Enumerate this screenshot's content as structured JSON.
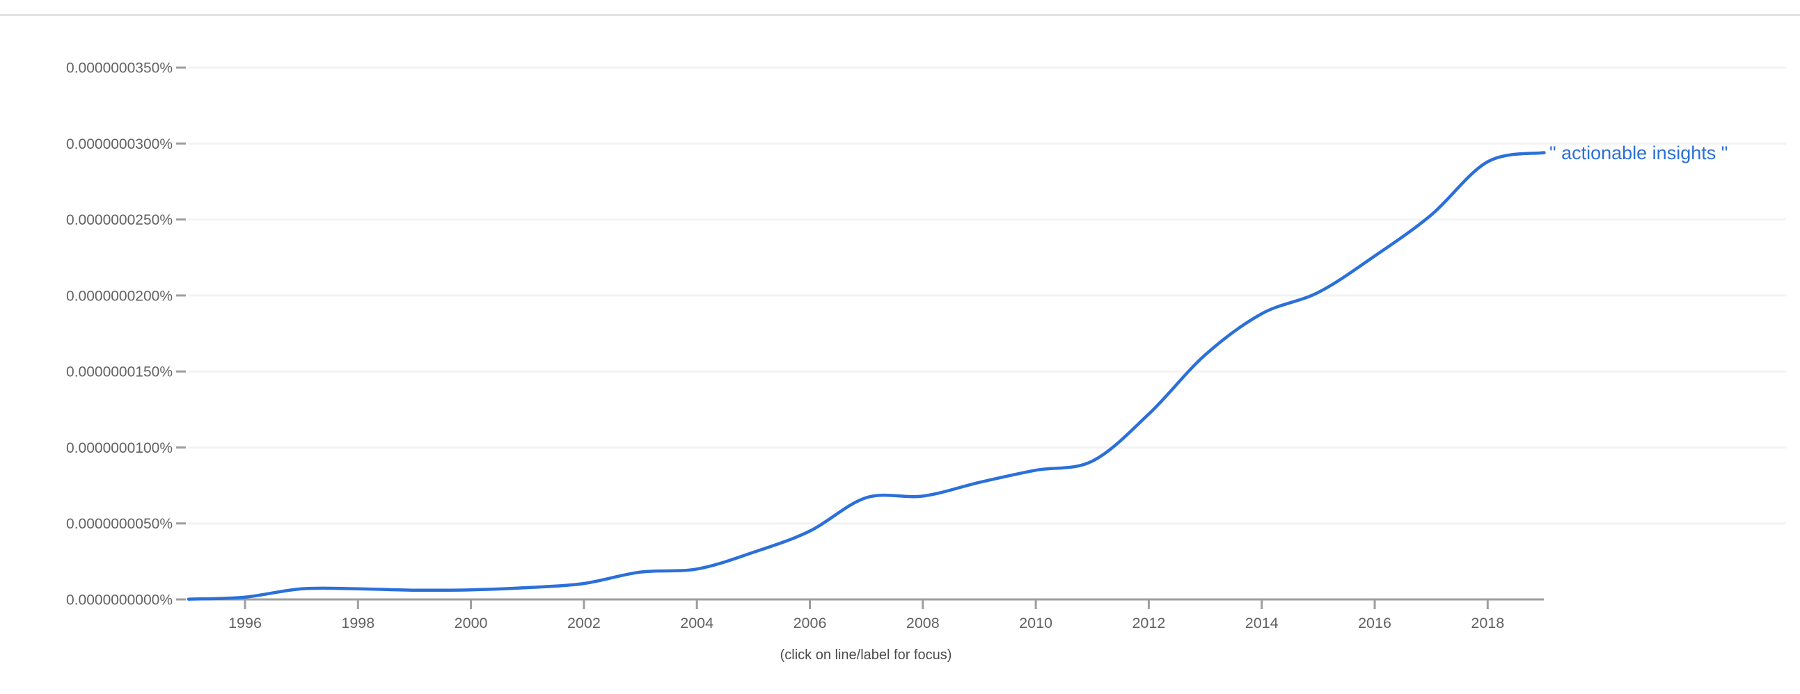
{
  "page": {
    "caption": "(click on line/label for focus)"
  },
  "colors": {
    "line": "#2b70d9",
    "series_label_text": "#2b70d9",
    "axis": "#9e9e9e",
    "tick": "#9e9e9e",
    "grid": "#f3f3f3",
    "axis_label_text": "#626262",
    "caption_text": "#4b4b4b",
    "top_divider": "#e2e2e2",
    "background": "#ffffff"
  },
  "chart_data": {
    "type": "line",
    "title": "",
    "xlabel": "",
    "ylabel": "",
    "grid": true,
    "legend_position": "end-of-line",
    "xlim": [
      1995,
      2019
    ],
    "ylim_percent": [
      0.0,
      3.5e-08
    ],
    "y_axis_unit": "percent of corpus (Google Ngram style)",
    "x_ticks": [
      1996,
      1998,
      2000,
      2002,
      2004,
      2006,
      2008,
      2010,
      2012,
      2014,
      2016,
      2018
    ],
    "y_tick_labels_top_to_bottom": [
      "0.0000000350%",
      "0.0000000300%",
      "0.0000000250%",
      "0.0000000200%",
      "0.0000000150%",
      "0.0000000100%",
      "0.0000000050%",
      "0.0000000000%"
    ],
    "value_unit_note": "series values are in units of 1e-10 percent (0.0000000001%)",
    "series": [
      {
        "name": "\" actionable insights \"",
        "color": "#2b70d9",
        "x": [
          1995,
          1996,
          1997,
          1998,
          1999,
          2000,
          2001,
          2002,
          2003,
          2004,
          2005,
          2006,
          2007,
          2008,
          2009,
          2010,
          2011,
          2012,
          2013,
          2014,
          2015,
          2016,
          2017,
          2018,
          2019
        ],
        "values_1e10_percent": [
          0.2,
          1.5,
          7,
          7,
          6.1,
          6.3,
          7.8,
          10.5,
          18,
          20,
          31,
          45,
          67,
          68,
          77,
          85,
          91,
          122,
          161,
          188,
          202,
          226,
          253,
          288,
          294
        ]
      }
    ]
  }
}
